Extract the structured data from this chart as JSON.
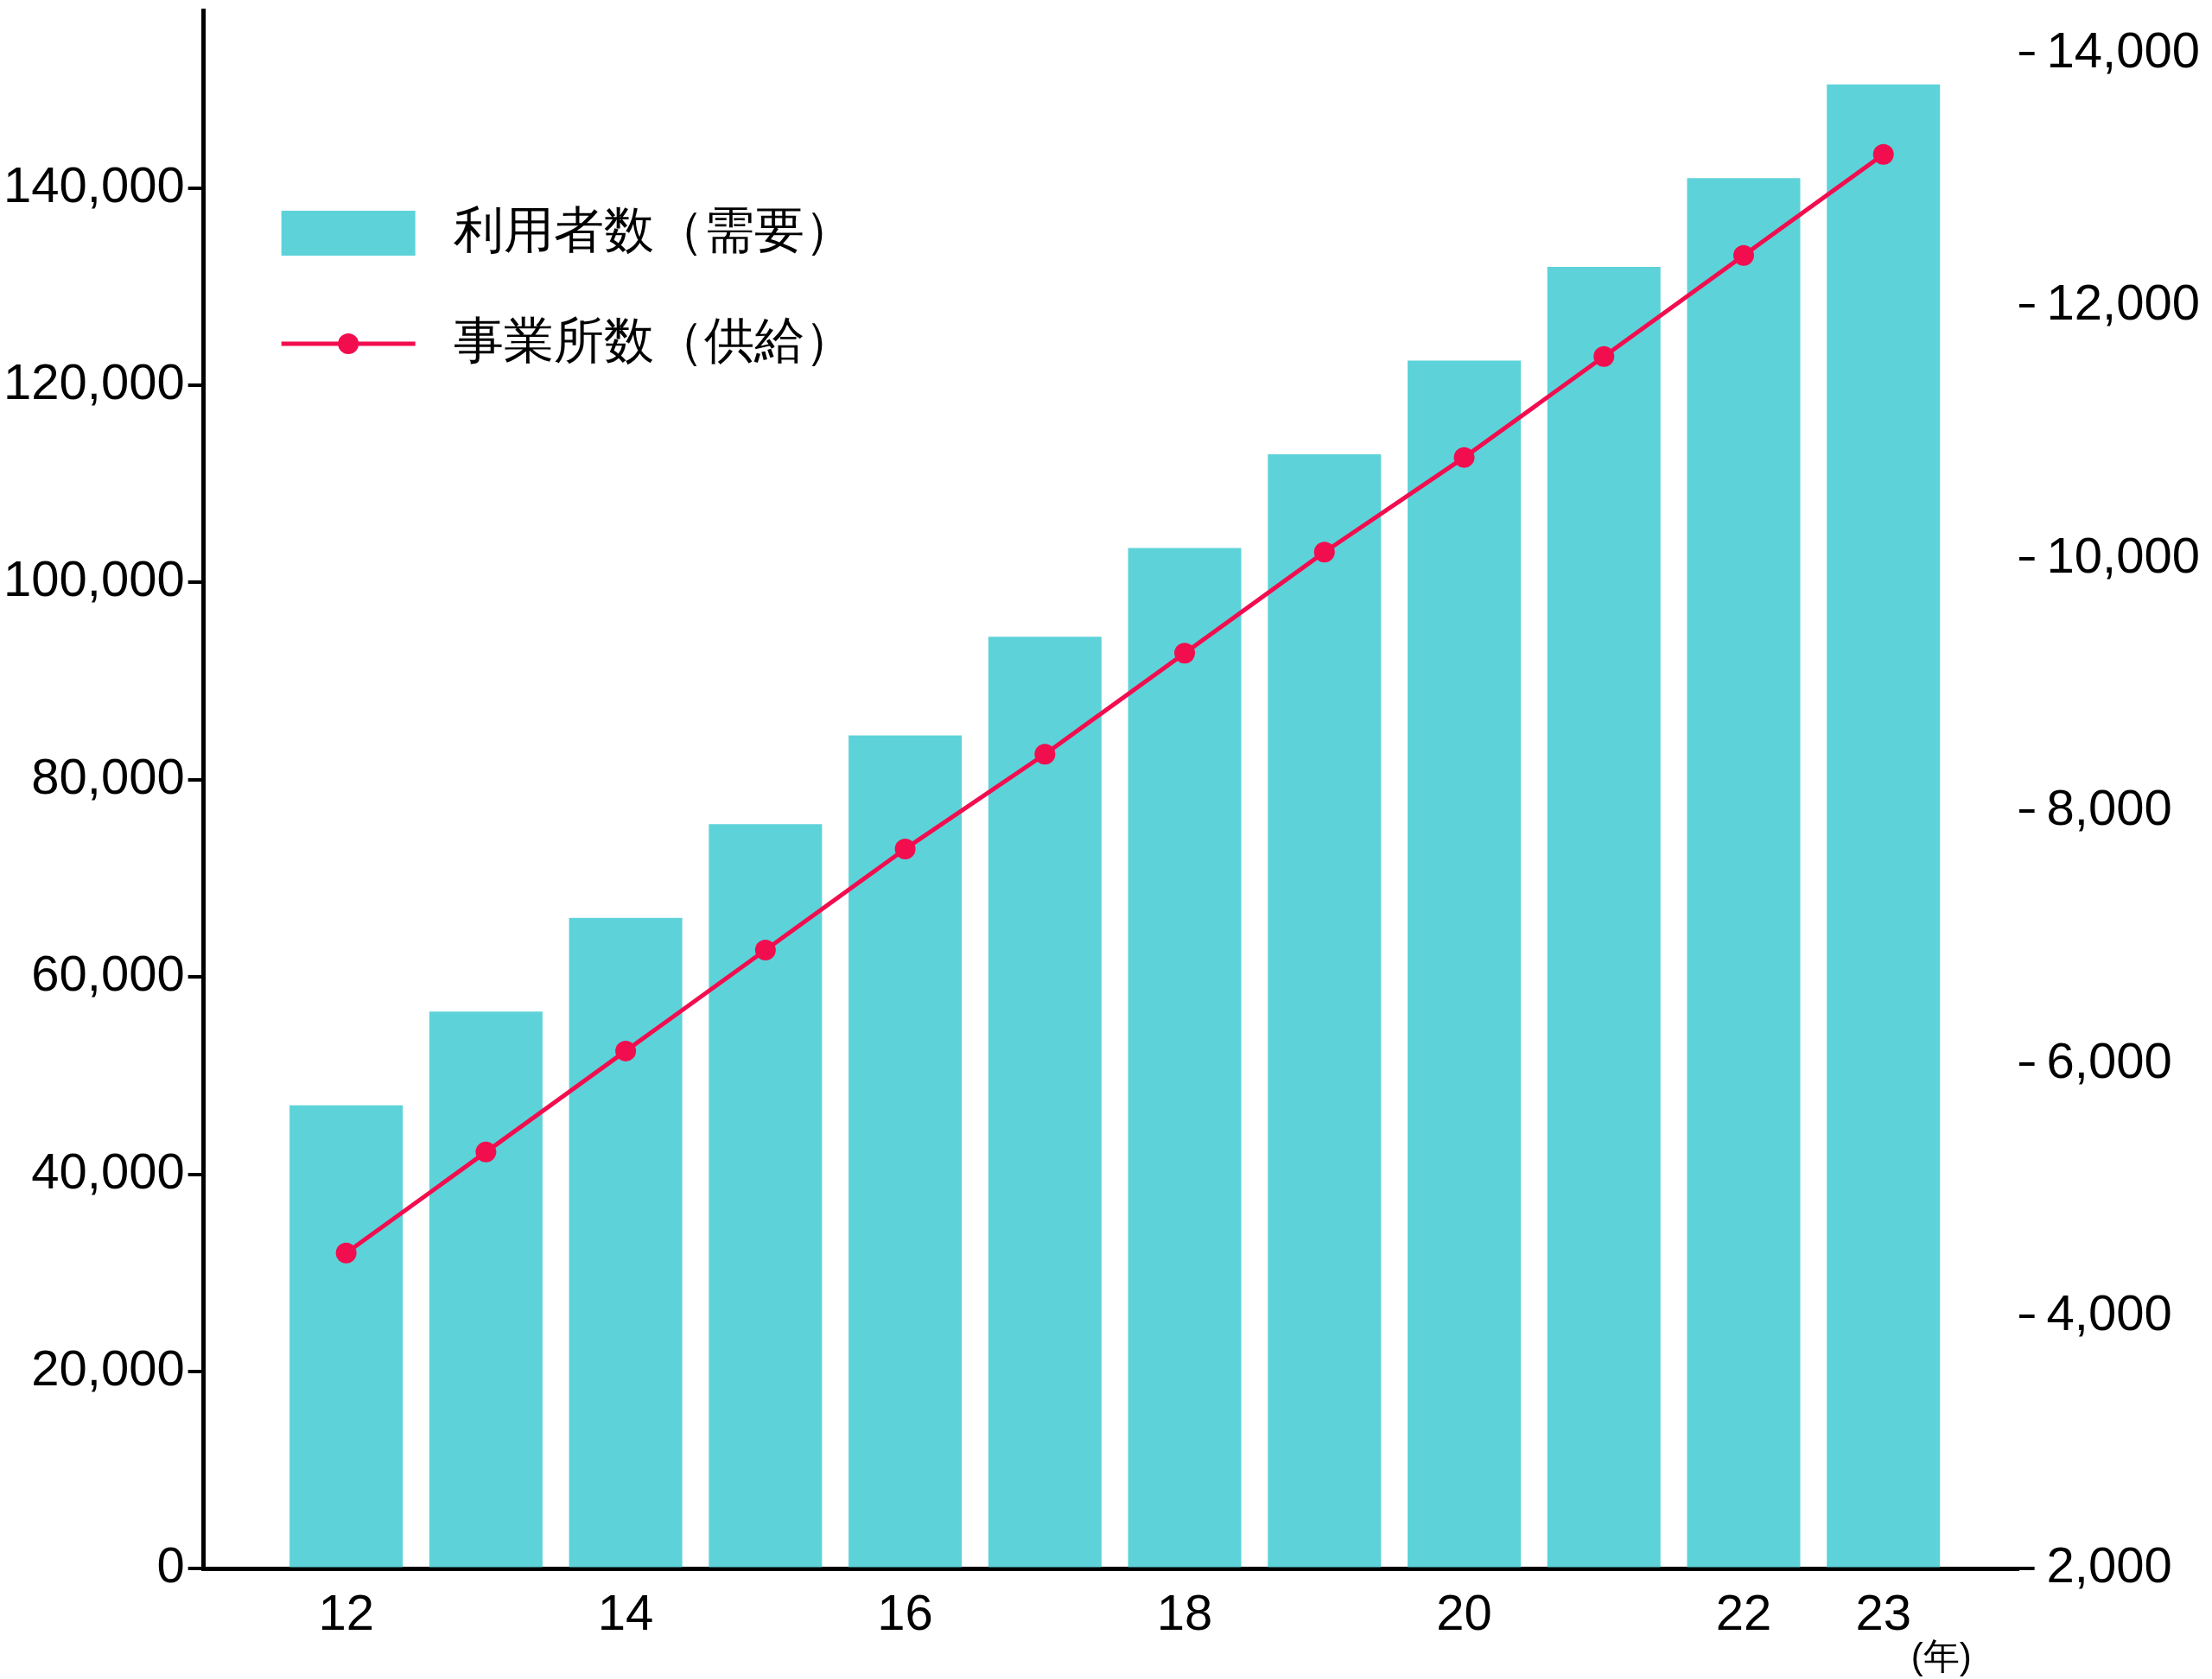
{
  "chart_data": {
    "type": "bar",
    "categories": [
      "12",
      null,
      "14",
      null,
      "16",
      null,
      "18",
      null,
      "20",
      null,
      "22",
      "23"
    ],
    "xlabel": "(年)",
    "series": [
      {
        "name": "利用者数（需要）",
        "color": "#5dd3d9",
        "values": [
          47000,
          56500,
          66000,
          75500,
          84500,
          94500,
          103500,
          113000,
          122500,
          132000,
          141000,
          150500
        ]
      },
      {
        "name": "事業所数（供給）",
        "type": "line",
        "axis": "y2",
        "color": "#f20d4f",
        "values": [
          4500,
          5300,
          6100,
          6900,
          7700,
          8450,
          9250,
          10050,
          10800,
          11600,
          12400,
          13200
        ]
      }
    ],
    "ylim": [
      0,
      158000
    ],
    "yticks": [
      0,
      {
        "value": 20000,
        "label": "20,000"
      },
      {
        "value": 40000,
        "label": "40,000"
      },
      {
        "value": 60000,
        "label": "60,000"
      },
      {
        "value": 80000,
        "label": "80,000"
      },
      {
        "value": 100000,
        "label": "100,000"
      },
      {
        "value": 120000,
        "label": "120,000"
      },
      {
        "value": 140000,
        "label": "140,000"
      }
    ],
    "y2lim": [
      2000,
      14340
    ],
    "y2ticks": [
      {
        "value": 2000,
        "label": "2,000"
      },
      {
        "value": 4000,
        "label": "4,000"
      },
      {
        "value": 6000,
        "label": "6,000"
      },
      {
        "value": 8000,
        "label": "8,000"
      },
      {
        "value": 10000,
        "label": "10,000"
      },
      {
        "value": 12000,
        "label": "12,000"
      },
      {
        "value": 14000,
        "label": "14,000"
      }
    ],
    "legend": "top left",
    "marker": "circle"
  }
}
